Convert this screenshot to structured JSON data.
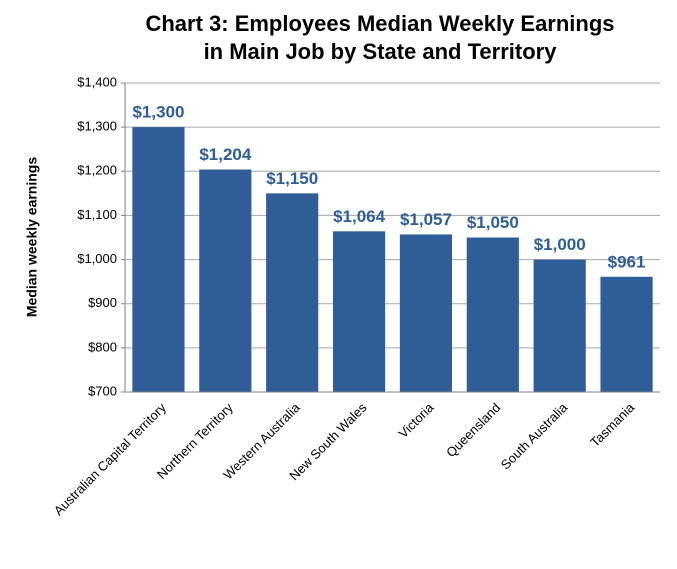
{
  "chart_data": {
    "type": "bar",
    "title": [
      "Chart 3: Employees Median Weekly Earnings",
      "in Main Job by State and Territory"
    ],
    "y_label": "Median weekly earnings",
    "categories": [
      "Australian Capital Territory",
      "Northern Territory",
      "Western Australia",
      "New South Wales",
      "Victoria",
      "Queensland",
      "South Australia",
      "Tasmania"
    ],
    "values": [
      1300,
      1204,
      1150,
      1064,
      1057,
      1050,
      1000,
      961
    ],
    "value_labels": [
      "$1,300",
      "$1,204",
      "$1,150",
      "$1,064",
      "$1,057",
      "$1,050",
      "$1,000",
      "$961"
    ],
    "color": "#2e5d97",
    "ylim": [
      700,
      1400
    ],
    "yticks": [
      {
        "value": 700,
        "label": "$700"
      },
      {
        "value": 800,
        "label": "$800"
      },
      {
        "value": 900,
        "label": "$900"
      },
      {
        "value": 1000,
        "label": "$1,000"
      },
      {
        "value": 1100,
        "label": "$1,100"
      },
      {
        "value": 1200,
        "label": "$1,200"
      },
      {
        "value": 1300,
        "label": "$1,300"
      },
      {
        "value": 1400,
        "label": "$1,400"
      }
    ],
    "grid": true
  }
}
